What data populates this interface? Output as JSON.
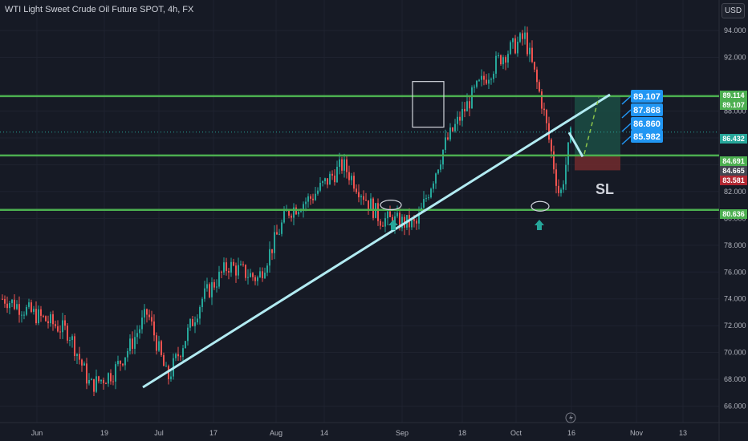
{
  "header": {
    "title": "WTI Light Sweet Crude Oil Future SPOT, 4h, FX",
    "currency_button": "USD"
  },
  "colors": {
    "background": "#161a25",
    "level_line": "#4caf50",
    "trend_line": "#b2ebf2",
    "bull_candle": "#26a69a",
    "bear_candle": "#ef5350",
    "target_badge": "#2196f3",
    "profit_zone": "#1b4d44",
    "loss_zone": "#6b2a2e"
  },
  "chart_data": {
    "type": "candlestick",
    "title": "WTI Light Sweet Crude Oil Future SPOT, 4h, FX",
    "x_ticks": [
      "Jun",
      "19",
      "Jul",
      "17",
      "Aug",
      "14",
      "Sep",
      "18",
      "Oct",
      "16",
      "Nov",
      "13"
    ],
    "y_ticks": [
      "66.000",
      "68.000",
      "70.000",
      "72.000",
      "74.000",
      "76.000",
      "78.000",
      "80.000",
      "82.000",
      "84.000",
      "86.000",
      "88.000",
      "92.000",
      "94.000"
    ],
    "ylim": [
      65.2,
      95.2
    ],
    "horizontal_levels": [
      89.114,
      84.691,
      80.636
    ],
    "price_path": [
      {
        "x": "Jun",
        "y": 74.0
      },
      {
        "x": "Jun",
        "y": 71.5
      },
      {
        "x": "Jun",
        "y": 67.5
      },
      {
        "x": "19",
        "y": 68.5
      },
      {
        "x": "19",
        "y": 70.5
      },
      {
        "x": "19",
        "y": 73.0
      },
      {
        "x": "Jul",
        "y": 68.0
      },
      {
        "x": "Jul",
        "y": 71.0
      },
      {
        "x": "Jul",
        "y": 74.0
      },
      {
        "x": "17",
        "y": 76.5
      },
      {
        "x": "17",
        "y": 75.5
      },
      {
        "x": "Aug",
        "y": 80.5
      },
      {
        "x": "Aug",
        "y": 81.5
      },
      {
        "x": "14",
        "y": 84.0
      },
      {
        "x": "14",
        "y": 80.0
      },
      {
        "x": "Sep",
        "y": 79.5
      },
      {
        "x": "Sep",
        "y": 85.5
      },
      {
        "x": "18",
        "y": 89.5
      },
      {
        "x": "18",
        "y": 92.0
      },
      {
        "x": "Oct",
        "y": 93.5
      },
      {
        "x": "Oct",
        "y": 88.5
      },
      {
        "x": "Oct",
        "y": 81.5
      },
      {
        "x": "16",
        "y": 84.5
      },
      {
        "x": "16",
        "y": 86.432
      }
    ],
    "price_labels": [
      {
        "label": "89.114",
        "value": 89.114,
        "color": "#4caf50"
      },
      {
        "label": "89.107",
        "value": 89.107,
        "color": "#4caf50"
      },
      {
        "label": "86.432",
        "value": 86.432,
        "color": "#26a69a"
      },
      {
        "label": "84.691",
        "value": 84.691,
        "color": "#4caf50"
      },
      {
        "label": "84.665",
        "value": 84.665,
        "color": "#434651"
      },
      {
        "label": "83.581",
        "value": 83.581,
        "color": "#b22833"
      },
      {
        "label": "80.636",
        "value": 80.636,
        "color": "#4caf50"
      }
    ],
    "targets": [
      "89.107",
      "87.868",
      "86.860",
      "85.982"
    ],
    "annotations": [
      "SL"
    ]
  }
}
